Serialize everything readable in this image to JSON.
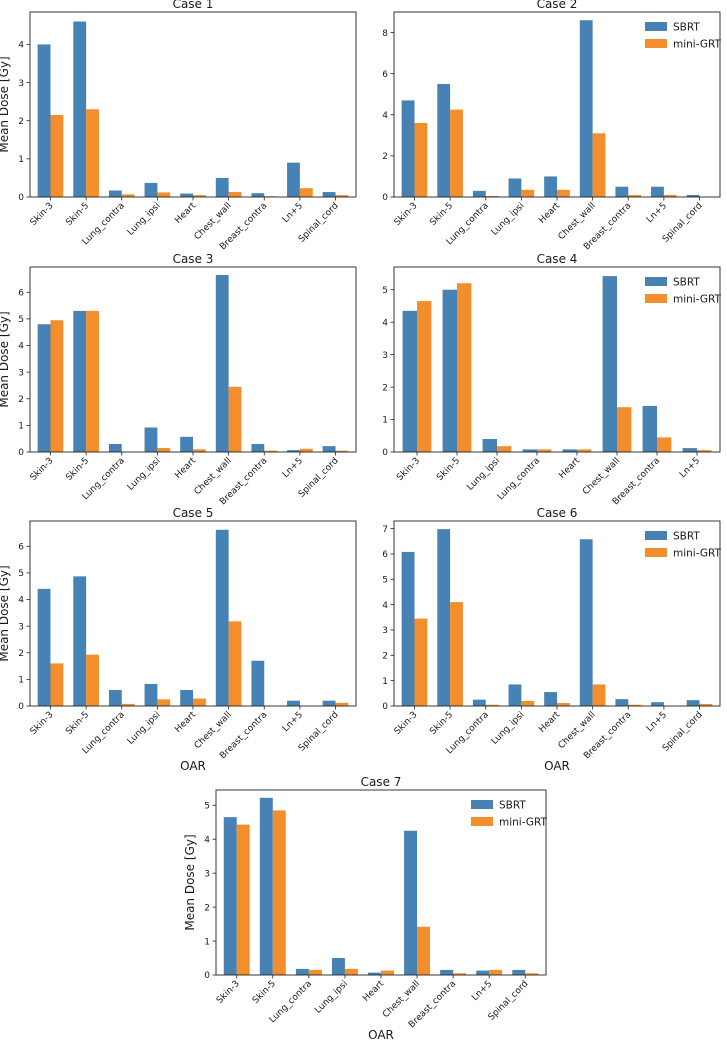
{
  "colors": {
    "SBRT": "#4682b4",
    "mini-GRT": "#f28e2b"
  },
  "chart_data": [
    {
      "type": "bar",
      "title": "Case 1",
      "ylabel": "Mean Dose [Gy]",
      "xlabel": "",
      "legend": false,
      "ylim": [
        0,
        4.85
      ],
      "yticks": [
        0,
        1,
        2,
        3,
        4
      ],
      "categories": [
        "Skin-3",
        "Skin-5",
        "Lung_contra",
        "Lung_ipsi",
        "Heart",
        "Chest_wall",
        "Breast_contra",
        "Ln+5",
        "Spinal_cord"
      ],
      "series": [
        {
          "name": "SBRT",
          "values": [
            4.0,
            4.6,
            0.17,
            0.37,
            0.09,
            0.5,
            0.1,
            0.9,
            0.13
          ]
        },
        {
          "name": "mini-GRT",
          "values": [
            2.15,
            2.3,
            0.07,
            0.12,
            0.05,
            0.13,
            0.02,
            0.23,
            0.05
          ]
        }
      ]
    },
    {
      "type": "bar",
      "title": "Case 2",
      "ylabel": "",
      "xlabel": "",
      "legend": true,
      "legend_position": "top-right",
      "ylim": [
        0,
        9.0
      ],
      "yticks": [
        0,
        2,
        4,
        6,
        8
      ],
      "categories": [
        "Skin-3",
        "Skin-5",
        "Lung_contra",
        "Lung_ipsi",
        "Heart",
        "Chest_wall",
        "Breast_contra",
        "Ln+5",
        "Spinal_cord"
      ],
      "series": [
        {
          "name": "SBRT",
          "values": [
            4.7,
            5.5,
            0.3,
            0.9,
            1.0,
            8.6,
            0.5,
            0.5,
            0.1
          ]
        },
        {
          "name": "mini-GRT",
          "values": [
            3.6,
            4.25,
            0.05,
            0.35,
            0.35,
            3.1,
            0.1,
            0.1,
            0.02
          ]
        }
      ]
    },
    {
      "type": "bar",
      "title": "Case 3",
      "ylabel": "Mean Dose [Gy]",
      "xlabel": "",
      "legend": false,
      "ylim": [
        0,
        6.95
      ],
      "yticks": [
        0,
        1,
        2,
        3,
        4,
        5,
        6
      ],
      "categories": [
        "Skin-3",
        "Skin-5",
        "Lung_contra",
        "Lung_ipsi",
        "Heart",
        "Chest_wall",
        "Breast_contra",
        "Ln+5",
        "Spinal_cord"
      ],
      "series": [
        {
          "name": "SBRT",
          "values": [
            4.8,
            5.3,
            0.3,
            0.92,
            0.57,
            6.65,
            0.3,
            0.07,
            0.22
          ]
        },
        {
          "name": "mini-GRT",
          "values": [
            4.95,
            5.3,
            0.0,
            0.15,
            0.1,
            2.45,
            0.05,
            0.12,
            0.05
          ]
        }
      ]
    },
    {
      "type": "bar",
      "title": "Case 4",
      "ylabel": "",
      "xlabel": "",
      "legend": true,
      "legend_position": "top-right",
      "ylim": [
        0,
        5.7
      ],
      "yticks": [
        0,
        1,
        2,
        3,
        4,
        5
      ],
      "categories": [
        "Skin-3",
        "Skin-5",
        "Lung_ipsi",
        "Lung_contra",
        "Heart",
        "Chest_wall",
        "Breast_contra",
        "Ln+5"
      ],
      "series": [
        {
          "name": "SBRT",
          "values": [
            4.35,
            5.0,
            0.4,
            0.08,
            0.08,
            5.42,
            1.42,
            0.12
          ]
        },
        {
          "name": "mini-GRT",
          "values": [
            4.65,
            5.2,
            0.18,
            0.08,
            0.08,
            1.38,
            0.45,
            0.06
          ]
        }
      ]
    },
    {
      "type": "bar",
      "title": "Case 5",
      "ylabel": "Mean Dose [Gy]",
      "xlabel": "OAR",
      "legend": false,
      "ylim": [
        0,
        6.95
      ],
      "yticks": [
        0,
        1,
        2,
        3,
        4,
        5,
        6
      ],
      "categories": [
        "Skin-3",
        "Skin-5",
        "Lung_contra",
        "Lung_ipsi",
        "Heart",
        "Chest_wall",
        "Breast_contra",
        "Ln+5",
        "Spinal_cord"
      ],
      "series": [
        {
          "name": "SBRT",
          "values": [
            4.4,
            4.87,
            0.6,
            0.83,
            0.6,
            6.62,
            1.7,
            0.2,
            0.2
          ]
        },
        {
          "name": "mini-GRT",
          "values": [
            1.6,
            1.93,
            0.08,
            0.25,
            0.28,
            3.18,
            0.0,
            0.0,
            0.12
          ]
        }
      ]
    },
    {
      "type": "bar",
      "title": "Case 6",
      "ylabel": "",
      "xlabel": "OAR",
      "legend": true,
      "legend_position": "top-right",
      "ylim": [
        0,
        7.3
      ],
      "yticks": [
        0,
        1,
        2,
        3,
        4,
        5,
        6,
        7
      ],
      "categories": [
        "Skin-3",
        "Skin-5",
        "Lung_contra",
        "Lung_ipsi",
        "Heart",
        "Chest_wall",
        "Breast_contra",
        "Ln+5",
        "Spinal_cord"
      ],
      "series": [
        {
          "name": "SBRT",
          "values": [
            6.08,
            6.98,
            0.25,
            0.85,
            0.55,
            6.58,
            0.27,
            0.15,
            0.23
          ]
        },
        {
          "name": "mini-GRT",
          "values": [
            3.45,
            4.1,
            0.05,
            0.2,
            0.12,
            0.85,
            0.05,
            0.0,
            0.08
          ]
        }
      ]
    },
    {
      "type": "bar",
      "title": "Case 7",
      "ylabel": "Mean Dose [Gy]",
      "xlabel": "OAR",
      "legend": true,
      "legend_position": "top-right",
      "ylim": [
        0,
        5.45
      ],
      "yticks": [
        0,
        1,
        2,
        3,
        4,
        5
      ],
      "categories": [
        "Skin-3",
        "Skin-5",
        "Lung_contra",
        "Lung_ipsi",
        "Heart",
        "Chest_wall",
        "Breast_contra",
        "Ln+5",
        "Spinal_cord"
      ],
      "series": [
        {
          "name": "SBRT",
          "values": [
            4.65,
            5.22,
            0.18,
            0.5,
            0.07,
            4.25,
            0.15,
            0.13,
            0.15
          ]
        },
        {
          "name": "mini-GRT",
          "values": [
            4.43,
            4.85,
            0.15,
            0.18,
            0.13,
            1.42,
            0.05,
            0.15,
            0.05
          ]
        }
      ]
    }
  ]
}
